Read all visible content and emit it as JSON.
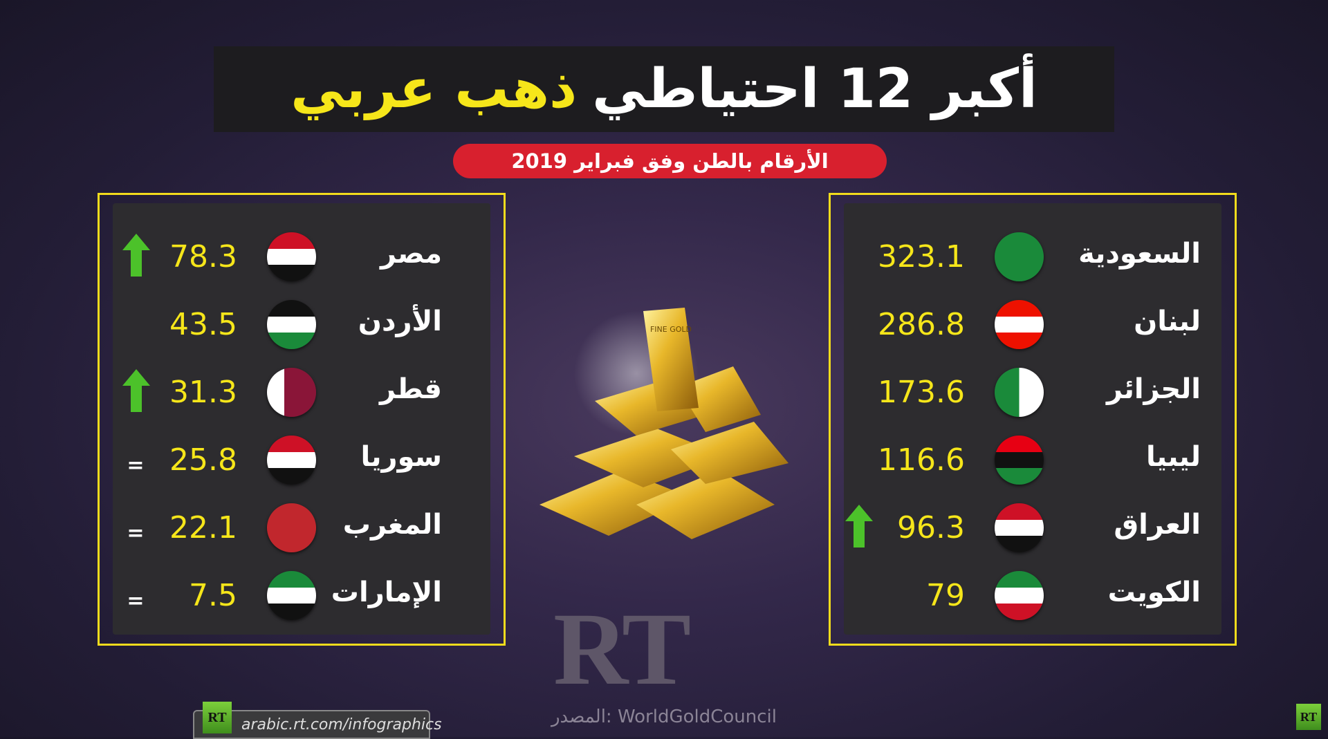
{
  "title": {
    "part1": "أكبر 12 احتياطي",
    "part2": "ذهب عربي"
  },
  "subtitle": "الأرقام بالطن وفق فبراير 2019",
  "colors": {
    "accent": "#f6e61a",
    "red": "#d8202e",
    "arrow": "#4cc22a"
  },
  "left_list": [
    {
      "name": "مصر",
      "value": "78.3",
      "trend": "up",
      "flag": "egypt"
    },
    {
      "name": "الأردن",
      "value": "43.5",
      "trend": "none",
      "flag": "jordan"
    },
    {
      "name": "قطر",
      "value": "31.3",
      "trend": "up",
      "flag": "qatar"
    },
    {
      "name": "سوريا",
      "value": "25.8",
      "trend": "equal",
      "flag": "syria"
    },
    {
      "name": "المغرب",
      "value": "22.1",
      "trend": "equal",
      "flag": "morocco"
    },
    {
      "name": "الإمارات",
      "value": "7.5",
      "trend": "equal",
      "flag": "uae"
    }
  ],
  "right_list": [
    {
      "name": "السعودية",
      "value": "323.1",
      "trend": "none",
      "flag": "saudi"
    },
    {
      "name": "لبنان",
      "value": "286.8",
      "trend": "none",
      "flag": "lebanon"
    },
    {
      "name": "الجزائر",
      "value": "173.6",
      "trend": "none",
      "flag": "algeria"
    },
    {
      "name": "ليبيا",
      "value": "116.6",
      "trend": "none",
      "flag": "libya"
    },
    {
      "name": "العراق",
      "value": "96.3",
      "trend": "up",
      "flag": "iraq"
    },
    {
      "name": "الكويت",
      "value": "79",
      "trend": "none",
      "flag": "kuwait"
    }
  ],
  "equal_symbol": "=",
  "gold_bar_label": "FINE GOLD",
  "watermark": "RT",
  "source": "المصدر: WorldGoldCouncil",
  "footer": {
    "badge": "RT",
    "url": "arabic.rt.com/infographics"
  },
  "corner_badge": "RT"
}
